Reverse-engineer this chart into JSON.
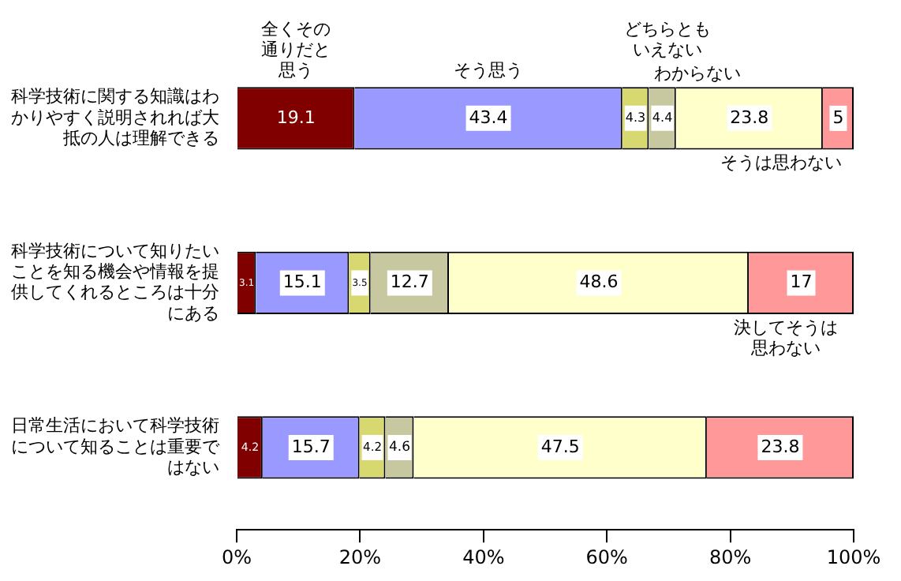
{
  "chart_data": {
    "type": "bar",
    "orientation": "horizontal",
    "stacked": true,
    "legend": false,
    "grid": false,
    "data_labels": true,
    "categories": [
      "科学技術に関する知識はわかりやすく説明されれば大抵の人は理解できる",
      "科学技術について知りたいことを知る機会や情報を提供してくれるところは十分にある",
      "日常生活において科学技術について知ることは重要ではない"
    ],
    "xlim": [
      0,
      100
    ],
    "xticks": [
      {
        "value": 0,
        "label": "0%"
      },
      {
        "value": 20,
        "label": "20%"
      },
      {
        "value": 40,
        "label": "40%"
      },
      {
        "value": 60,
        "label": "60%"
      },
      {
        "value": 80,
        "label": "80%"
      },
      {
        "value": 100,
        "label": "100%"
      }
    ],
    "series": [
      {
        "name": "全くその通りだと思う",
        "color": "#800000",
        "values": [
          19.1,
          3.1,
          4.2
        ]
      },
      {
        "name": "そう思う",
        "color": "#9999ff",
        "values": [
          43.4,
          15.1,
          15.7
        ]
      },
      {
        "name": "どちらともいえない",
        "color": "#d8d870",
        "values": [
          4.3,
          3.5,
          4.2
        ]
      },
      {
        "name": "わからない",
        "color": "#c8c8a0",
        "values": [
          4.4,
          12.7,
          4.6
        ]
      },
      {
        "name": "そうは思わない",
        "color": "#ffffcc",
        "values": [
          23.8,
          48.6,
          47.5
        ]
      },
      {
        "name": "決してそうは思わない",
        "color": "#ff9999",
        "values": [
          5,
          17,
          23.8
        ]
      }
    ]
  }
}
